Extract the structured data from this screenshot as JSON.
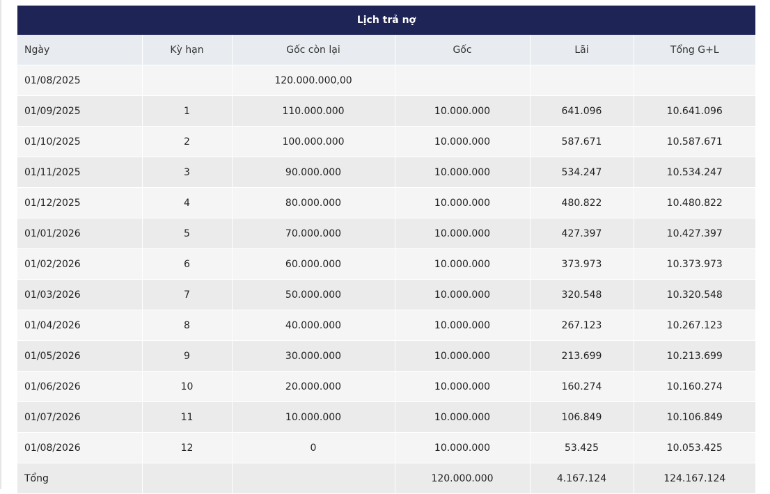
{
  "table": {
    "title": "Lịch trả nợ",
    "headers": [
      "Ngày",
      "Kỳ hạn",
      "Gốc còn lại",
      "Gốc",
      "Lãi",
      "Tổng G+L"
    ],
    "rows": [
      [
        "01/08/2025",
        "",
        "120.000.000,00",
        "",
        "",
        ""
      ],
      [
        "01/09/2025",
        "1",
        "110.000.000",
        "10.000.000",
        "641.096",
        "10.641.096"
      ],
      [
        "01/10/2025",
        "2",
        "100.000.000",
        "10.000.000",
        "587.671",
        "10.587.671"
      ],
      [
        "01/11/2025",
        "3",
        "90.000.000",
        "10.000.000",
        "534.247",
        "10.534.247"
      ],
      [
        "01/12/2025",
        "4",
        "80.000.000",
        "10.000.000",
        "480.822",
        "10.480.822"
      ],
      [
        "01/01/2026",
        "5",
        "70.000.000",
        "10.000.000",
        "427.397",
        "10.427.397"
      ],
      [
        "01/02/2026",
        "6",
        "60.000.000",
        "10.000.000",
        "373.973",
        "10.373.973"
      ],
      [
        "01/03/2026",
        "7",
        "50.000.000",
        "10.000.000",
        "320.548",
        "10.320.548"
      ],
      [
        "01/04/2026",
        "8",
        "40.000.000",
        "10.000.000",
        "267.123",
        "10.267.123"
      ],
      [
        "01/05/2026",
        "9",
        "30.000.000",
        "10.000.000",
        "213.699",
        "10.213.699"
      ],
      [
        "01/06/2026",
        "10",
        "20.000.000",
        "10.000.000",
        "160.274",
        "10.160.274"
      ],
      [
        "01/07/2026",
        "11",
        "10.000.000",
        "10.000.000",
        "106.849",
        "10.106.849"
      ],
      [
        "01/08/2026",
        "12",
        "0",
        "10.000.000",
        "53.425",
        "10.053.425"
      ]
    ],
    "total": [
      "Tổng",
      "",
      "",
      "120.000.000",
      "4.167.124",
      "124.167.124"
    ]
  },
  "colors": {
    "title_bg": "#1e2455",
    "header_bg": "#e8ecf0",
    "row_odd": "#f5f5f5",
    "row_even": "#ebebeb"
  }
}
